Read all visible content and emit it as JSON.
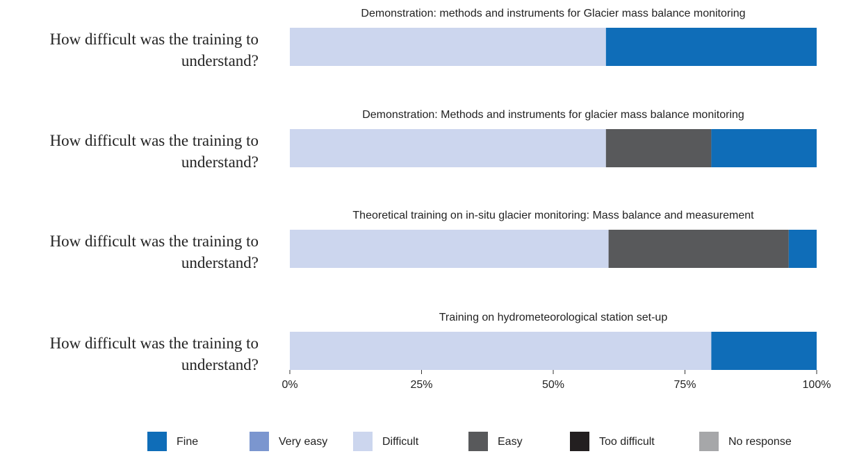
{
  "chart_data": {
    "type": "bar",
    "orientation": "horizontal",
    "stacked": true,
    "subtitles": [
      "Demonstration: methods and instruments for Glacier mass balance monitoring",
      "Demonstration: Methods and instruments for glacier mass balance monitoring",
      "Theoretical training on in-situ glacier monitoring: Mass balance and measurement",
      "Training on hydrometeorological station set-up"
    ],
    "categories": [
      "How difficult was the training to understand?",
      "How difficult was the training to understand?",
      "How difficult was the training to understand?",
      "How difficult was the training to understand?"
    ],
    "series": [
      {
        "name": "Fine",
        "color": "#0f6db8",
        "values": [
          40,
          20,
          5.3,
          20
        ]
      },
      {
        "name": "Very easy",
        "color": "#7b96cf",
        "values": [
          0,
          0,
          0,
          0
        ]
      },
      {
        "name": "Difficult",
        "color": "#ccd6ee",
        "values": [
          60,
          60,
          60.5,
          80
        ]
      },
      {
        "name": "Easy",
        "color": "#58595b",
        "values": [
          0,
          20,
          34.2,
          0
        ]
      },
      {
        "name": "Too difficult",
        "color": "#231f20",
        "values": [
          0,
          0,
          0,
          0
        ]
      },
      {
        "name": "No response",
        "color": "#a6a7a9",
        "values": [
          0,
          0,
          0,
          0
        ]
      }
    ],
    "xlim": [
      0,
      100
    ],
    "xticks": [
      {
        "value": 0,
        "label": "0%"
      },
      {
        "value": 25,
        "label": "25%"
      },
      {
        "value": 50,
        "label": "50%"
      },
      {
        "value": 75,
        "label": "75%"
      },
      {
        "value": 100,
        "label": "100%"
      }
    ],
    "legend": "bottom"
  }
}
